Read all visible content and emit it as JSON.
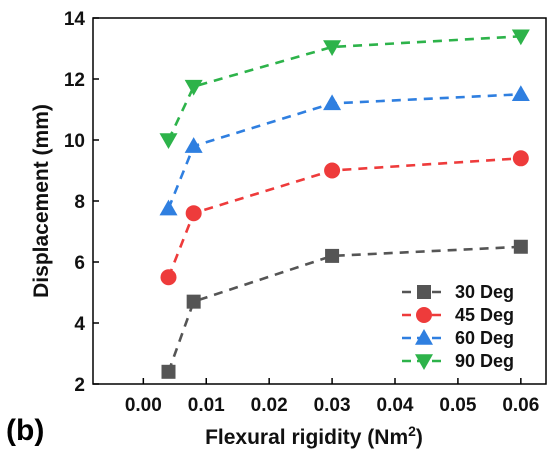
{
  "panel_label": "(b)",
  "chart_data": {
    "type": "line",
    "title": "",
    "xlabel": "Flexural rigidity (Nm",
    "xlabel_superscript": "2",
    "xlabel_suffix": ")",
    "ylabel": "Displacement (mm)",
    "xlim": [
      -0.008,
      0.064
    ],
    "ylim": [
      2,
      14
    ],
    "xticks": [
      0.0,
      0.01,
      0.02,
      0.03,
      0.04,
      0.05,
      0.06
    ],
    "xtick_labels": [
      "0.00",
      "0.01",
      "0.02",
      "0.03",
      "0.04",
      "0.05",
      "0.06"
    ],
    "yticks": [
      2,
      4,
      6,
      8,
      10,
      12,
      14
    ],
    "ytick_labels": [
      "2",
      "4",
      "6",
      "8",
      "10",
      "12",
      "14"
    ],
    "grid": false,
    "legend_position": "bottom-right",
    "series": [
      {
        "name": "30 Deg",
        "color": "#555555",
        "marker": "square",
        "x": [
          0.004,
          0.008,
          0.03,
          0.06
        ],
        "y": [
          2.4,
          4.7,
          6.2,
          6.5
        ]
      },
      {
        "name": "45 Deg",
        "color": "#ee3b3b",
        "marker": "circle",
        "x": [
          0.004,
          0.008,
          0.03,
          0.06
        ],
        "y": [
          5.5,
          7.6,
          9.0,
          9.4
        ]
      },
      {
        "name": "60 Deg",
        "color": "#2f7fe0",
        "marker": "triangle-up",
        "x": [
          0.004,
          0.008,
          0.03,
          0.06
        ],
        "y": [
          7.75,
          9.8,
          11.2,
          11.5
        ]
      },
      {
        "name": "90 Deg",
        "color": "#2db34a",
        "marker": "triangle-down",
        "x": [
          0.004,
          0.008,
          0.03,
          0.06
        ],
        "y": [
          10.0,
          11.75,
          13.05,
          13.4
        ]
      }
    ]
  }
}
